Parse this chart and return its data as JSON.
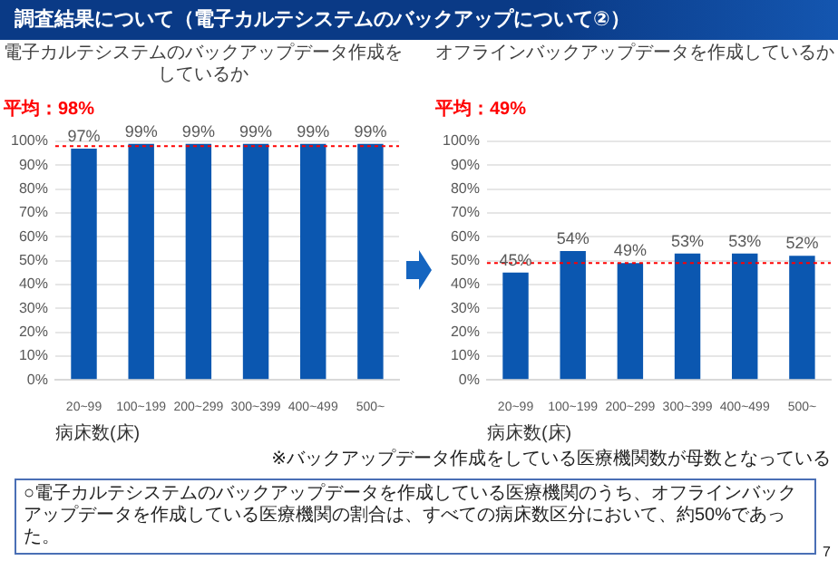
{
  "chart_data": [
    {
      "type": "bar",
      "title": "電子カルテシステムのバックアップデータ作成をしているか",
      "xlabel": "病床数(床)",
      "categories": [
        "20~99",
        "100~199",
        "200~299",
        "300~399",
        "400~499",
        "500~"
      ],
      "values": [
        97,
        99,
        99,
        99,
        99,
        99
      ],
      "value_labels": [
        "97%",
        "99%",
        "99%",
        "99%",
        "99%",
        "99%"
      ],
      "color": "#0b57b0",
      "ylim": [
        0,
        100
      ],
      "yticks": [
        {
          "value": 0,
          "label": "0%"
        },
        {
          "value": 10,
          "label": "10%"
        },
        {
          "value": 20,
          "label": "20%"
        },
        {
          "value": 30,
          "label": "30%"
        },
        {
          "value": 40,
          "label": "40%"
        },
        {
          "value": 50,
          "label": "50%"
        },
        {
          "value": 60,
          "label": "60%"
        },
        {
          "value": 70,
          "label": "70%"
        },
        {
          "value": 80,
          "label": "80%"
        },
        {
          "value": 90,
          "label": "90%"
        },
        {
          "value": 100,
          "label": "100%"
        }
      ],
      "grid": "y",
      "ref_lines": [
        {
          "axis": "y",
          "value": 98,
          "label": "平均：98%",
          "color": "#ff0000",
          "line_style": "dotted"
        }
      ],
      "annotations": [
        "調査結果について（電子カルテシステムのバックアップについて②）"
      ]
    },
    {
      "type": "bar",
      "title": "オフラインバックアップデータを作成しているか",
      "xlabel": "病床数(床)",
      "categories": [
        "20~99",
        "100~199",
        "200~299",
        "300~399",
        "400~499",
        "500~"
      ],
      "values": [
        45,
        54,
        49,
        53,
        53,
        52
      ],
      "value_labels": [
        "45%",
        "54%",
        "49%",
        "53%",
        "53%",
        "52%"
      ],
      "color": "#0b57b0",
      "ylim": [
        0,
        100
      ],
      "yticks": [
        {
          "value": 0,
          "label": "0%"
        },
        {
          "value": 10,
          "label": "10%"
        },
        {
          "value": 20,
          "label": "20%"
        },
        {
          "value": 30,
          "label": "30%"
        },
        {
          "value": 40,
          "label": "40%"
        },
        {
          "value": 50,
          "label": "50%"
        },
        {
          "value": 60,
          "label": "60%"
        },
        {
          "value": 70,
          "label": "70%"
        },
        {
          "value": 80,
          "label": "80%"
        },
        {
          "value": 90,
          "label": "90%"
        },
        {
          "value": 100,
          "label": "100%"
        }
      ],
      "grid": "y",
      "ref_lines": [
        {
          "axis": "y",
          "value": 49,
          "label": "平均：49%",
          "color": "#ff0000",
          "line_style": "dotted"
        }
      ],
      "annotations": [
        "※バックアップデータ作成をしている医療機関数が母数となっている",
        "○電子カルテシステムのバックアップデータを作成している医療機関のうち、オフラインバックアップデータを作成している医療機関の割合は、すべての病床数区分において、約50%であった。",
        "7"
      ]
    }
  ]
}
